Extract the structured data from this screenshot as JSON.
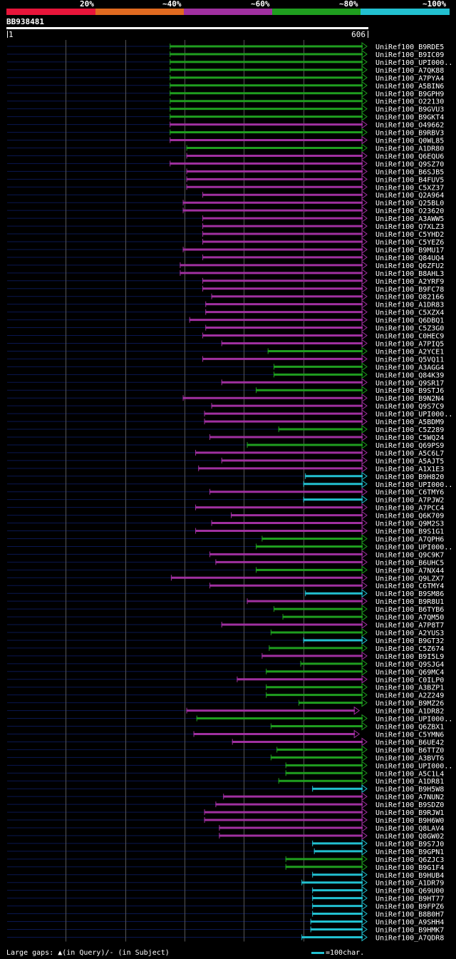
{
  "colors": {
    "background": "#000000",
    "guide": "#0a1750",
    "gridline": "#555555",
    "band20": "#e8153a",
    "band40": "#e06a20",
    "band60": "#a030a0",
    "band80": "#1f9e1f",
    "band100": "#22c0d0"
  },
  "legend": {
    "pct20": "20%",
    "pct40": "~40%",
    "pct60": "~60%",
    "pct80": "~80%",
    "pct100": "~100%"
  },
  "query": {
    "id": "BB938481",
    "start_label": "1",
    "end_label": "606"
  },
  "footer": {
    "large_gaps": "Large gaps: ▲(in Query)/- (in Subject)",
    "scale": "=100char."
  },
  "chart_data": {
    "type": "alignment-overview",
    "query_length": 606,
    "gridlines_at": [
      100,
      200,
      300,
      400,
      500
    ],
    "hits": [
      {
        "id": "UniRef100_B9RDE5",
        "start": 275,
        "end": 606,
        "band": "80"
      },
      {
        "id": "UniRef100_B9IC09",
        "start": 275,
        "end": 606,
        "band": "80"
      },
      {
        "id": "UniRef100_UPI000..",
        "start": 275,
        "end": 606,
        "band": "80"
      },
      {
        "id": "UniRef100_A7QK88",
        "start": 275,
        "end": 606,
        "band": "80"
      },
      {
        "id": "UniRef100_A7PYA4",
        "start": 275,
        "end": 606,
        "band": "80"
      },
      {
        "id": "UniRef100_A5BIN6",
        "start": 275,
        "end": 606,
        "band": "80"
      },
      {
        "id": "UniRef100_B9GPH9",
        "start": 275,
        "end": 606,
        "band": "80"
      },
      {
        "id": "UniRef100_O22130",
        "start": 275,
        "end": 606,
        "band": "80"
      },
      {
        "id": "UniRef100_B9GVU3",
        "start": 275,
        "end": 606,
        "band": "80"
      },
      {
        "id": "UniRef100_B9GKT4",
        "start": 275,
        "end": 606,
        "band": "80"
      },
      {
        "id": "UniRef100_O49662",
        "start": 275,
        "end": 606,
        "band": "60"
      },
      {
        "id": "UniRef100_B9RBV3",
        "start": 275,
        "end": 606,
        "band": "80"
      },
      {
        "id": "UniRef100_Q0WL85",
        "start": 275,
        "end": 606,
        "band": "60"
      },
      {
        "id": "UniRef100_A1DR80",
        "start": 303,
        "end": 606,
        "band": "80"
      },
      {
        "id": "UniRef100_Q6EQU6",
        "start": 303,
        "end": 606,
        "band": "60"
      },
      {
        "id": "UniRef100_Q9SZ70",
        "start": 275,
        "end": 606,
        "band": "60"
      },
      {
        "id": "UniRef100_B6SJB5",
        "start": 303,
        "end": 606,
        "band": "60"
      },
      {
        "id": "UniRef100_B4FUV5",
        "start": 303,
        "end": 606,
        "band": "60"
      },
      {
        "id": "UniRef100_C5XZ37",
        "start": 303,
        "end": 606,
        "band": "60"
      },
      {
        "id": "UniRef100_Q2A964",
        "start": 330,
        "end": 606,
        "band": "60"
      },
      {
        "id": "UniRef100_Q25BL0",
        "start": 297,
        "end": 606,
        "band": "60"
      },
      {
        "id": "UniRef100_O23620",
        "start": 297,
        "end": 606,
        "band": "60"
      },
      {
        "id": "UniRef100_A3AWW5",
        "start": 330,
        "end": 606,
        "band": "60"
      },
      {
        "id": "UniRef100_Q7XLZ3",
        "start": 330,
        "end": 606,
        "band": "60"
      },
      {
        "id": "UniRef100_C5YHD2",
        "start": 330,
        "end": 606,
        "band": "60"
      },
      {
        "id": "UniRef100_C5YEZ6",
        "start": 330,
        "end": 606,
        "band": "60"
      },
      {
        "id": "UniRef100_B9MU17",
        "start": 297,
        "end": 606,
        "band": "60"
      },
      {
        "id": "UniRef100_Q84UQ4",
        "start": 330,
        "end": 606,
        "band": "60"
      },
      {
        "id": "UniRef100_Q6ZFU2",
        "start": 292,
        "end": 606,
        "band": "60"
      },
      {
        "id": "UniRef100_B8AHL3",
        "start": 292,
        "end": 606,
        "band": "60"
      },
      {
        "id": "UniRef100_A2YRF9",
        "start": 330,
        "end": 606,
        "band": "60"
      },
      {
        "id": "UniRef100_B9FC78",
        "start": 330,
        "end": 606,
        "band": "60"
      },
      {
        "id": "UniRef100_O82166",
        "start": 345,
        "end": 606,
        "band": "60"
      },
      {
        "id": "UniRef100_A1DR83",
        "start": 335,
        "end": 606,
        "band": "60"
      },
      {
        "id": "UniRef100_C5XZX4",
        "start": 335,
        "end": 606,
        "band": "60"
      },
      {
        "id": "UniRef100_Q6DBQ1",
        "start": 308,
        "end": 606,
        "band": "60"
      },
      {
        "id": "UniRef100_C5Z3G0",
        "start": 335,
        "end": 606,
        "band": "60"
      },
      {
        "id": "UniRef100_C0HEC9",
        "start": 330,
        "end": 606,
        "band": "60"
      },
      {
        "id": "UniRef100_A7PIQ5",
        "start": 362,
        "end": 606,
        "band": "60"
      },
      {
        "id": "UniRef100_A2YCE1",
        "start": 440,
        "end": 606,
        "band": "80"
      },
      {
        "id": "UniRef100_Q5VQ11",
        "start": 330,
        "end": 606,
        "band": "60"
      },
      {
        "id": "UniRef100_A3AGG4",
        "start": 450,
        "end": 606,
        "band": "80"
      },
      {
        "id": "UniRef100_Q84K39",
        "start": 450,
        "end": 606,
        "band": "80"
      },
      {
        "id": "UniRef100_Q9SR17",
        "start": 362,
        "end": 606,
        "band": "60"
      },
      {
        "id": "UniRef100_B9STJ6",
        "start": 420,
        "end": 606,
        "band": "80"
      },
      {
        "id": "UniRef100_B9N2N4",
        "start": 297,
        "end": 606,
        "band": "60"
      },
      {
        "id": "UniRef100_Q9S7C9",
        "start": 345,
        "end": 606,
        "band": "60"
      },
      {
        "id": "UniRef100_UPI000..",
        "start": 333,
        "end": 606,
        "band": "60"
      },
      {
        "id": "UniRef100_A5BDM9",
        "start": 333,
        "end": 606,
        "band": "60"
      },
      {
        "id": "UniRef100_C5Z289",
        "start": 458,
        "end": 606,
        "band": "80"
      },
      {
        "id": "UniRef100_C5WQ24",
        "start": 342,
        "end": 606,
        "band": "60"
      },
      {
        "id": "UniRef100_Q69PS9",
        "start": 405,
        "end": 606,
        "band": "80"
      },
      {
        "id": "UniRef100_A5C6L7",
        "start": 318,
        "end": 606,
        "band": "60"
      },
      {
        "id": "UniRef100_A5AJT5",
        "start": 362,
        "end": 606,
        "band": "60"
      },
      {
        "id": "UniRef100_A1X1E3",
        "start": 323,
        "end": 606,
        "band": "60"
      },
      {
        "id": "UniRef100_B9H820",
        "start": 503,
        "end": 606,
        "band": "100"
      },
      {
        "id": "UniRef100_UPI000..",
        "start": 500,
        "end": 606,
        "band": "100"
      },
      {
        "id": "UniRef100_C6TMY6",
        "start": 342,
        "end": 606,
        "band": "60"
      },
      {
        "id": "UniRef100_A7PJW2",
        "start": 500,
        "end": 606,
        "band": "100"
      },
      {
        "id": "UniRef100_A7PCC4",
        "start": 318,
        "end": 606,
        "band": "60"
      },
      {
        "id": "UniRef100_Q6K709",
        "start": 378,
        "end": 606,
        "band": "60"
      },
      {
        "id": "UniRef100_Q9M2S3",
        "start": 345,
        "end": 606,
        "band": "60"
      },
      {
        "id": "UniRef100_B9S1G1",
        "start": 318,
        "end": 606,
        "band": "60"
      },
      {
        "id": "UniRef100_A7QPH6",
        "start": 430,
        "end": 606,
        "band": "80"
      },
      {
        "id": "UniRef100_UPI000..",
        "start": 420,
        "end": 606,
        "band": "80"
      },
      {
        "id": "UniRef100_Q9C9K7",
        "start": 342,
        "end": 606,
        "band": "60"
      },
      {
        "id": "UniRef100_B6UHC5",
        "start": 352,
        "end": 606,
        "band": "60"
      },
      {
        "id": "UniRef100_A7NX44",
        "start": 420,
        "end": 606,
        "band": "80"
      },
      {
        "id": "UniRef100_Q9LZX7",
        "start": 277,
        "end": 606,
        "band": "60"
      },
      {
        "id": "UniRef100_C6TMY4",
        "start": 342,
        "end": 606,
        "band": "60"
      },
      {
        "id": "UniRef100_B9SM86",
        "start": 503,
        "end": 606,
        "band": "100"
      },
      {
        "id": "UniRef100_B9R8U1",
        "start": 405,
        "end": 606,
        "band": "60"
      },
      {
        "id": "UniRef100_B6TYB6",
        "start": 450,
        "end": 606,
        "band": "80"
      },
      {
        "id": "UniRef100_A7QM50",
        "start": 465,
        "end": 606,
        "band": "80"
      },
      {
        "id": "UniRef100_A7P8T7",
        "start": 362,
        "end": 606,
        "band": "60"
      },
      {
        "id": "UniRef100_A2YUS3",
        "start": 445,
        "end": 606,
        "band": "80"
      },
      {
        "id": "UniRef100_B9GT32",
        "start": 500,
        "end": 606,
        "band": "100"
      },
      {
        "id": "UniRef100_C5Z674",
        "start": 442,
        "end": 606,
        "band": "80"
      },
      {
        "id": "UniRef100_B9I5L9",
        "start": 430,
        "end": 606,
        "band": "60"
      },
      {
        "id": "UniRef100_Q9SJG4",
        "start": 495,
        "end": 606,
        "band": "80"
      },
      {
        "id": "UniRef100_Q69MC4",
        "start": 437,
        "end": 606,
        "band": "80"
      },
      {
        "id": "UniRef100_C0ILP0",
        "start": 388,
        "end": 606,
        "band": "60"
      },
      {
        "id": "UniRef100_A3BZP1",
        "start": 437,
        "end": 606,
        "band": "80"
      },
      {
        "id": "UniRef100_A2Z249",
        "start": 437,
        "end": 606,
        "band": "80"
      },
      {
        "id": "UniRef100_B9MZ26",
        "start": 492,
        "end": 606,
        "band": "80"
      },
      {
        "id": "UniRef100_A1DR82",
        "start": 303,
        "end": 593,
        "band": "60"
      },
      {
        "id": "UniRef100_UPI000..",
        "start": 320,
        "end": 606,
        "band": "80"
      },
      {
        "id": "UniRef100_Q6ZBX1",
        "start": 445,
        "end": 606,
        "band": "80"
      },
      {
        "id": "UniRef100_C5YMN6",
        "start": 315,
        "end": 593,
        "band": "60"
      },
      {
        "id": "UniRef100_B6UE42",
        "start": 380,
        "end": 606,
        "band": "60"
      },
      {
        "id": "UniRef100_B6TTZ0",
        "start": 455,
        "end": 606,
        "band": "80"
      },
      {
        "id": "UniRef100_A3BVT6",
        "start": 445,
        "end": 606,
        "band": "80"
      },
      {
        "id": "UniRef100_UPI000..",
        "start": 470,
        "end": 606,
        "band": "80"
      },
      {
        "id": "UniRef100_A5C1L4",
        "start": 470,
        "end": 606,
        "band": "80"
      },
      {
        "id": "UniRef100_A1DR81",
        "start": 458,
        "end": 606,
        "band": "80"
      },
      {
        "id": "UniRef100_B9H5W8",
        "start": 515,
        "end": 606,
        "band": "100"
      },
      {
        "id": "UniRef100_A7NUN2",
        "start": 365,
        "end": 606,
        "band": "60"
      },
      {
        "id": "UniRef100_B9SDZ0",
        "start": 352,
        "end": 606,
        "band": "60"
      },
      {
        "id": "UniRef100_B9RJW1",
        "start": 333,
        "end": 606,
        "band": "60"
      },
      {
        "id": "UniRef100_B9H6W0",
        "start": 333,
        "end": 606,
        "band": "60"
      },
      {
        "id": "UniRef100_Q8LAV4",
        "start": 358,
        "end": 606,
        "band": "60"
      },
      {
        "id": "UniRef100_Q8GW02",
        "start": 358,
        "end": 606,
        "band": "60"
      },
      {
        "id": "UniRef100_B9S7J0",
        "start": 515,
        "end": 606,
        "band": "100"
      },
      {
        "id": "UniRef100_B9GPN1",
        "start": 518,
        "end": 606,
        "band": "100"
      },
      {
        "id": "UniRef100_Q6ZJC3",
        "start": 470,
        "end": 606,
        "band": "80"
      },
      {
        "id": "UniRef100_B9G1F4",
        "start": 470,
        "end": 606,
        "band": "80"
      },
      {
        "id": "UniRef100_B9HUB4",
        "start": 515,
        "end": 606,
        "band": "100"
      },
      {
        "id": "UniRef100_A1DR79",
        "start": 497,
        "end": 606,
        "band": "100"
      },
      {
        "id": "UniRef100_Q69U00",
        "start": 515,
        "end": 606,
        "band": "100"
      },
      {
        "id": "UniRef100_B9HT77",
        "start": 515,
        "end": 606,
        "band": "100"
      },
      {
        "id": "UniRef100_B9FPZ6",
        "start": 515,
        "end": 606,
        "band": "100"
      },
      {
        "id": "UniRef100_B8B0H7",
        "start": 515,
        "end": 606,
        "band": "100"
      },
      {
        "id": "UniRef100_A9SHH4",
        "start": 512,
        "end": 606,
        "band": "100"
      },
      {
        "id": "UniRef100_B9HMK7",
        "start": 512,
        "end": 606,
        "band": "100"
      },
      {
        "id": "UniRef100_A7QDR8",
        "start": 497,
        "end": 606,
        "band": "100"
      }
    ]
  }
}
